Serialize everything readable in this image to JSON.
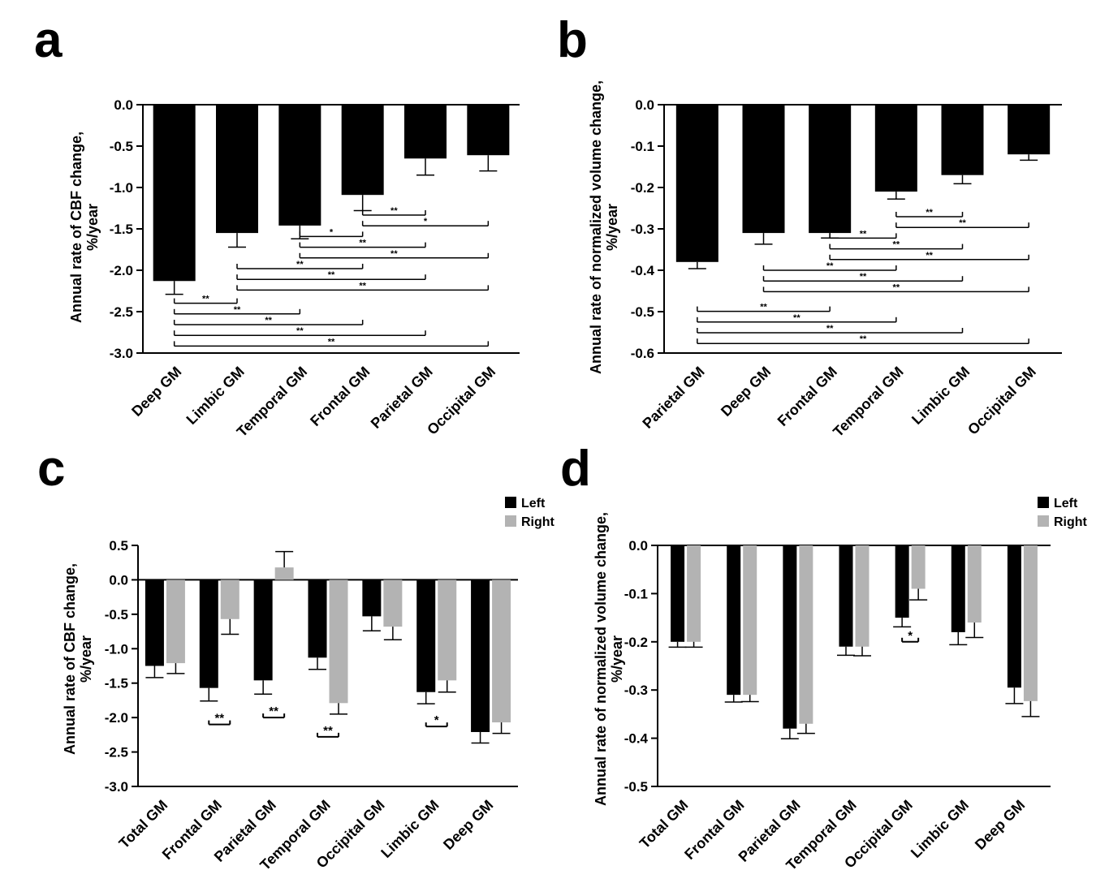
{
  "colors": {
    "left": "#000000",
    "right": "#b3b3b3",
    "axis": "#000000"
  },
  "chart_data": [
    {
      "panel": "a",
      "type": "bar",
      "ylabel": "Annual rate of CBF change, %/year",
      "ylim": [
        -3.0,
        0.0
      ],
      "yticks": [
        "0.0",
        "-0.5",
        "-1.0",
        "-1.5",
        "-2.0",
        "-2.5",
        "-3.0"
      ],
      "categories": [
        "Deep GM",
        "Limbic GM",
        "Temporal GM",
        "Frontal GM",
        "Parietal GM",
        "Occipital GM"
      ],
      "values": [
        -2.13,
        -1.55,
        -1.46,
        -1.09,
        -0.65,
        -0.61
      ],
      "errors": [
        0.16,
        0.17,
        0.16,
        0.19,
        0.2,
        0.19
      ],
      "significance": [
        {
          "from": 3,
          "to": 4,
          "label": "**"
        },
        {
          "from": 3,
          "to": 5,
          "label": "*"
        },
        {
          "from": 2,
          "to": 3,
          "label": "*"
        },
        {
          "from": 2,
          "to": 4,
          "label": "**"
        },
        {
          "from": 2,
          "to": 5,
          "label": "**"
        },
        {
          "from": 1,
          "to": 3,
          "label": "**"
        },
        {
          "from": 1,
          "to": 4,
          "label": "**"
        },
        {
          "from": 1,
          "to": 5,
          "label": "**"
        },
        {
          "from": 0,
          "to": 1,
          "label": "**"
        },
        {
          "from": 0,
          "to": 2,
          "label": "**"
        },
        {
          "from": 0,
          "to": 3,
          "label": "**"
        },
        {
          "from": 0,
          "to": 4,
          "label": "**"
        },
        {
          "from": 0,
          "to": 5,
          "label": "**"
        }
      ]
    },
    {
      "panel": "b",
      "type": "bar",
      "ylabel": "Annual rate of normalized volume change, %/year",
      "ylim": [
        -0.6,
        0.0
      ],
      "yticks": [
        "0.0",
        "-0.1",
        "-0.2",
        "-0.3",
        "-0.4",
        "-0.5",
        "-0.6"
      ],
      "categories": [
        "Parietal GM",
        "Deep GM",
        "Frontal GM",
        "Temporal GM",
        "Limbic GM",
        "Occipital GM"
      ],
      "values": [
        -0.38,
        -0.31,
        -0.31,
        -0.21,
        -0.17,
        -0.12
      ],
      "errors": [
        0.016,
        0.027,
        0.012,
        0.018,
        0.021,
        0.014
      ],
      "significance": [
        {
          "from": 3,
          "to": 4,
          "label": "**"
        },
        {
          "from": 3,
          "to": 5,
          "label": "**"
        },
        {
          "from": 2,
          "to": 3,
          "label": "**"
        },
        {
          "from": 2,
          "to": 4,
          "label": "**"
        },
        {
          "from": 2,
          "to": 5,
          "label": "**"
        },
        {
          "from": 1,
          "to": 3,
          "label": "**"
        },
        {
          "from": 1,
          "to": 4,
          "label": "**"
        },
        {
          "from": 1,
          "to": 5,
          "label": "**"
        },
        {
          "from": 0,
          "to": 2,
          "label": "**"
        },
        {
          "from": 0,
          "to": 3,
          "label": "**"
        },
        {
          "from": 0,
          "to": 4,
          "label": "**"
        },
        {
          "from": 0,
          "to": 5,
          "label": "**"
        }
      ]
    },
    {
      "panel": "c",
      "type": "bar",
      "ylabel": "Annual rate of CBF change, %/year",
      "ylim": [
        -3.0,
        0.5
      ],
      "yticks": [
        "0.5",
        "0.0",
        "-0.5",
        "-1.0",
        "-1.5",
        "-2.0",
        "-2.5",
        "-3.0"
      ],
      "categories": [
        "Total GM",
        "Frontal GM",
        "Parietal GM",
        "Temporal GM",
        "Occipital GM",
        "Limbic GM",
        "Deep GM"
      ],
      "series": [
        {
          "name": "Left",
          "values": [
            -1.25,
            -1.57,
            -1.46,
            -1.13,
            -0.53,
            -1.63,
            -2.21
          ],
          "errors": [
            0.17,
            0.19,
            0.2,
            0.17,
            0.21,
            0.17,
            0.16
          ]
        },
        {
          "name": "Right",
          "values": [
            -1.21,
            -0.57,
            0.18,
            -1.79,
            -0.68,
            -1.46,
            -2.07
          ],
          "errors": [
            0.15,
            0.22,
            0.23,
            0.16,
            0.19,
            0.17,
            0.16
          ]
        }
      ],
      "legend": "top-right",
      "significance": [
        {
          "category": 1,
          "y": -2.1,
          "label": "**"
        },
        {
          "category": 2,
          "y": -2.0,
          "label": "**"
        },
        {
          "category": 3,
          "y": -2.28,
          "label": "**"
        },
        {
          "category": 5,
          "y": -2.13,
          "label": "*"
        }
      ]
    },
    {
      "panel": "d",
      "type": "bar",
      "ylabel": "Annual rate of normalized volume change, %/year",
      "ylim": [
        -0.5,
        0.0
      ],
      "yticks": [
        "0.0",
        "-0.1",
        "-0.2",
        "-0.3",
        "-0.4",
        "-0.5"
      ],
      "categories": [
        "Total GM",
        "Frontal GM",
        "Parietal GM",
        "Temporal GM",
        "Occipital GM",
        "Limbic GM",
        "Deep GM"
      ],
      "series": [
        {
          "name": "Left",
          "values": [
            -0.2,
            -0.31,
            -0.38,
            -0.21,
            -0.15,
            -0.18,
            -0.295
          ],
          "errors": [
            0.011,
            0.015,
            0.021,
            0.018,
            0.019,
            0.026,
            0.033
          ]
        },
        {
          "name": "Right",
          "values": [
            -0.2,
            -0.31,
            -0.37,
            -0.21,
            -0.09,
            -0.16,
            -0.323
          ],
          "errors": [
            0.011,
            0.014,
            0.02,
            0.019,
            0.023,
            0.031,
            0.032
          ]
        }
      ],
      "legend": "top-right",
      "significance": [
        {
          "category": 4,
          "y": -0.2,
          "label": "*"
        }
      ]
    }
  ]
}
